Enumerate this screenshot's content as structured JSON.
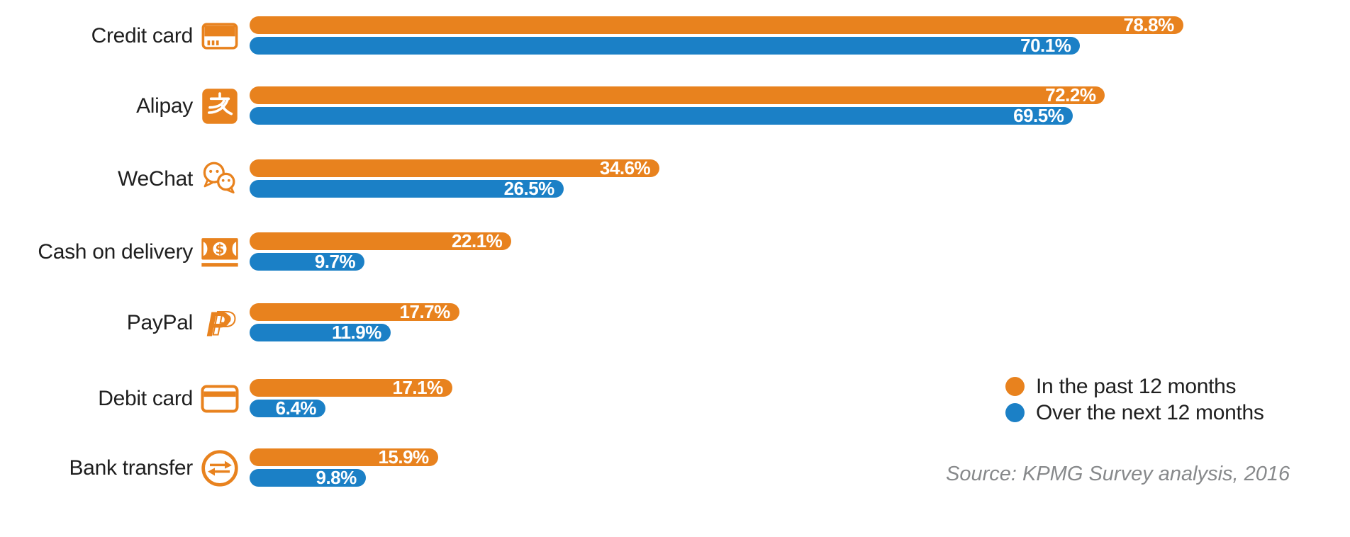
{
  "chart_data": {
    "type": "bar",
    "orientation": "horizontal",
    "unit": "percent",
    "title": "",
    "categories": [
      "Credit card",
      "Alipay",
      "WeChat",
      "Cash on delivery",
      "PayPal",
      "Debit card",
      "Bank transfer"
    ],
    "category_icons": [
      "credit-card-icon",
      "alipay-icon",
      "wechat-icon",
      "cash-on-delivery-icon",
      "paypal-icon",
      "debit-card-icon",
      "bank-transfer-icon"
    ],
    "series": [
      {
        "name": "In the past 12 months",
        "color": "#E8821E",
        "values": [
          78.8,
          72.2,
          34.6,
          22.1,
          17.7,
          17.1,
          15.9
        ],
        "labels": [
          "78.8%",
          "72.2%",
          "34.6%",
          "22.1%",
          "17.7%",
          "17.1%",
          "15.9%"
        ]
      },
      {
        "name": "Over the next 12 months",
        "color": "#1B80C6",
        "values": [
          70.1,
          69.5,
          26.5,
          9.7,
          11.9,
          6.4,
          9.8
        ],
        "labels": [
          "70.1%",
          "69.5%",
          "26.5%",
          "9.7%",
          "11.9%",
          "6.4%",
          "9.8%"
        ]
      }
    ],
    "xlim": [
      0,
      100
    ],
    "grid": false,
    "value_labels": "inside-end",
    "legend_position": "right-middle",
    "source_note": "Source: KPMG Survey analysis, 2016"
  },
  "legend": {
    "items": [
      {
        "label": "In the past 12 months",
        "color": "#E8821E"
      },
      {
        "label": "Over the next 12 months",
        "color": "#1B80C6"
      }
    ]
  },
  "source": {
    "text": "Source: KPMG Survey analysis, 2016"
  }
}
